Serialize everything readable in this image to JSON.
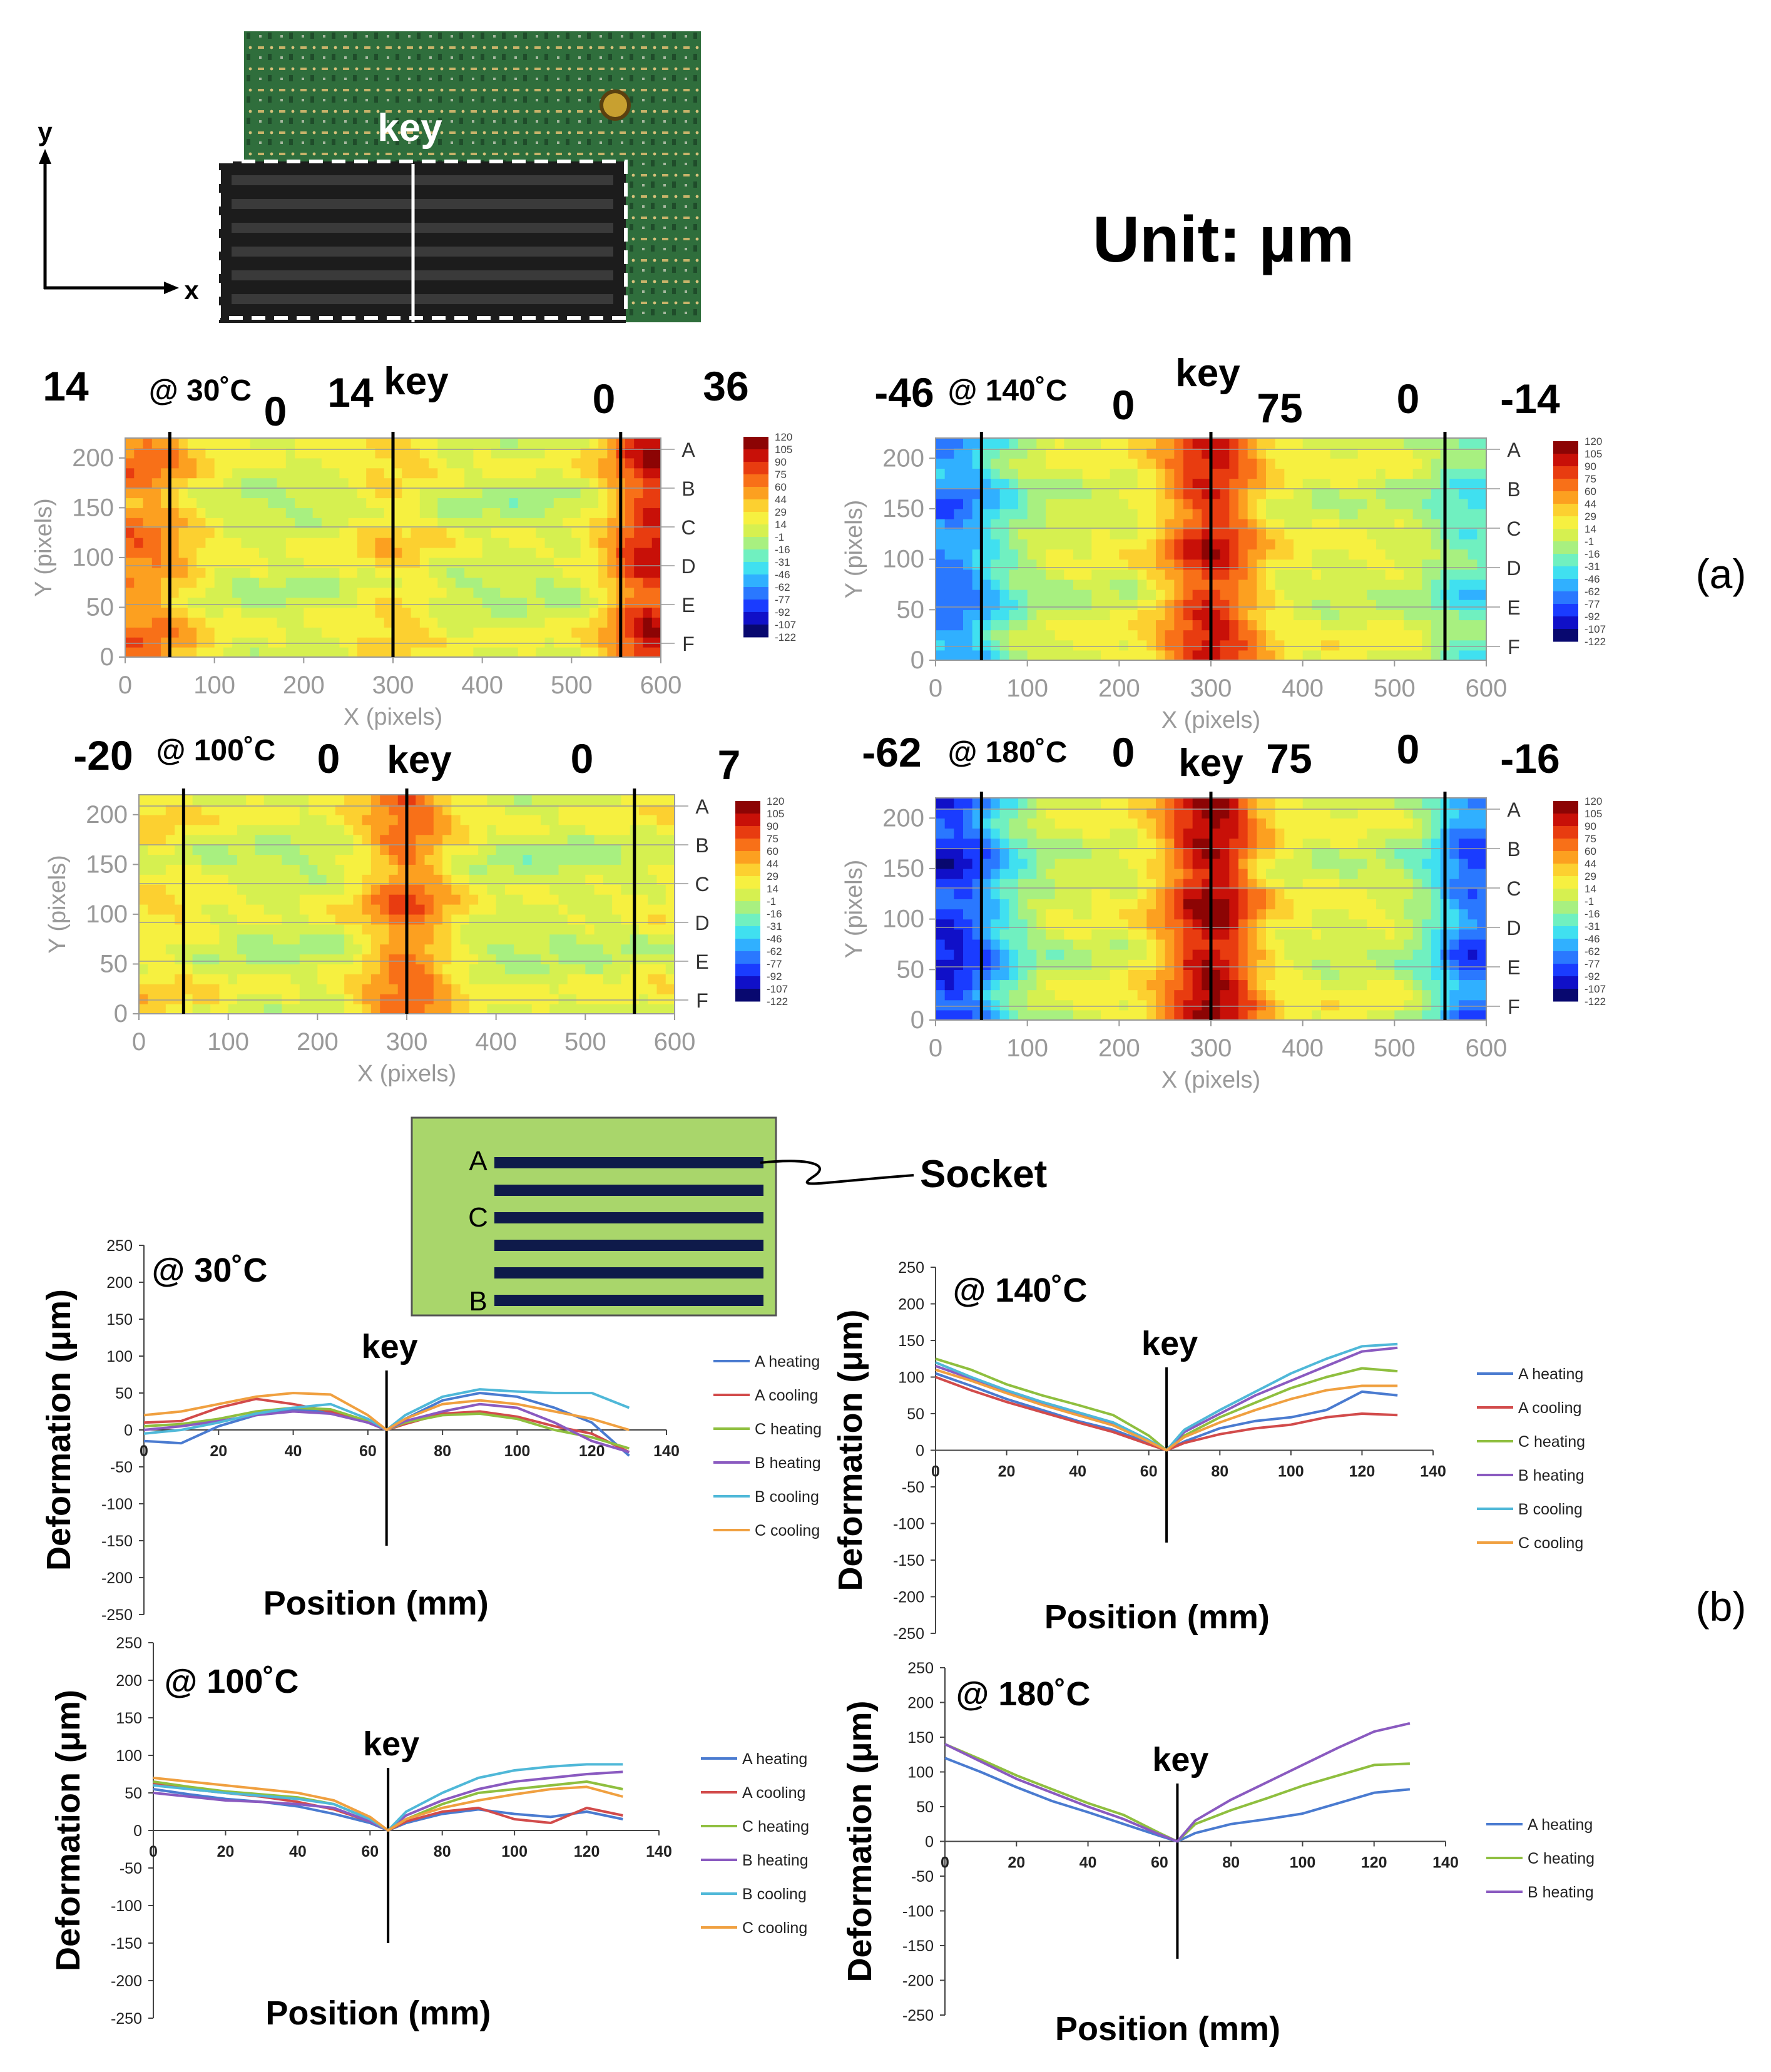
{
  "figure": {
    "unit_label": "Unit: µm",
    "panel_a_label": "(a)",
    "panel_b_label": "(b)",
    "photo": {
      "key_label": "key",
      "axis_x": "x",
      "axis_y": "y"
    },
    "socket_diagram": {
      "row_labels": [
        "A",
        "C",
        "B"
      ],
      "socket_label": "Socket",
      "board_color": "#a9d66b",
      "bar_color": "#0e1a4a"
    }
  },
  "chart_data": [
    {
      "type": "heatmap",
      "title": "@ 30˚C",
      "xlabel": "X (pixels)",
      "ylabel": "Y (pixels)",
      "xlim": [
        0,
        600
      ],
      "ylim": [
        0,
        220
      ],
      "xticks": [
        0,
        100,
        200,
        300,
        400,
        500,
        600
      ],
      "yticks": [
        0,
        50,
        100,
        150,
        200
      ],
      "row_labels": [
        "A",
        "B",
        "C",
        "D",
        "E",
        "F"
      ],
      "key_label": "key",
      "colorbar_ticks": [
        120,
        105,
        90,
        75,
        60,
        44,
        29,
        14,
        -1,
        -16,
        -31,
        -46,
        -62,
        -77,
        -92,
        -107,
        -122
      ],
      "annotations": [
        "14",
        "0",
        "14",
        "0",
        "36"
      ],
      "field": {
        "base": 5,
        "left": 55,
        "key": 25,
        "right": 85,
        "edge_noise": 12
      }
    },
    {
      "type": "heatmap",
      "title": "@ 140˚C",
      "xlabel": "X (pixels)",
      "ylabel": "Y (pixels)",
      "xlim": [
        0,
        600
      ],
      "ylim": [
        0,
        220
      ],
      "xticks": [
        0,
        100,
        200,
        300,
        400,
        500,
        600
      ],
      "yticks": [
        0,
        50,
        100,
        150,
        200
      ],
      "row_labels": [
        "A",
        "B",
        "C",
        "D",
        "E",
        "F"
      ],
      "key_label": "key",
      "colorbar_ticks": [
        120,
        105,
        90,
        75,
        60,
        44,
        29,
        14,
        -1,
        -16,
        -31,
        -46,
        -62,
        -77,
        -92,
        -107,
        -122
      ],
      "annotations": [
        "-46",
        "0",
        "75",
        "0",
        "-14"
      ],
      "field": {
        "base": 10,
        "left": -75,
        "key": 80,
        "right": -40,
        "edge_noise": 12
      }
    },
    {
      "type": "heatmap",
      "title": "@ 100˚C",
      "xlabel": "X (pixels)",
      "ylabel": "Y (pixels)",
      "xlim": [
        0,
        600
      ],
      "ylim": [
        0,
        220
      ],
      "xticks": [
        0,
        100,
        200,
        300,
        400,
        500,
        600
      ],
      "yticks": [
        0,
        50,
        100,
        150,
        200
      ],
      "row_labels": [
        "A",
        "B",
        "C",
        "D",
        "E",
        "F"
      ],
      "key_label": "key",
      "colorbar_ticks": [
        120,
        105,
        90,
        75,
        60,
        44,
        29,
        14,
        -1,
        -16,
        -31,
        -46,
        -62,
        -77,
        -92,
        -107,
        -122
      ],
      "annotations": [
        "-20",
        "0",
        "0",
        "7"
      ],
      "field": {
        "base": 5,
        "left": 20,
        "key": 60,
        "right": 10,
        "edge_noise": 12
      }
    },
    {
      "type": "heatmap",
      "title": "@ 180˚C",
      "xlabel": "X (pixels)",
      "ylabel": "Y (pixels)",
      "xlim": [
        0,
        600
      ],
      "ylim": [
        0,
        220
      ],
      "xticks": [
        0,
        100,
        200,
        300,
        400,
        500,
        600
      ],
      "yticks": [
        0,
        50,
        100,
        150,
        200
      ],
      "row_labels": [
        "A",
        "B",
        "C",
        "D",
        "E",
        "F"
      ],
      "key_label": "key",
      "colorbar_ticks": [
        120,
        105,
        90,
        75,
        60,
        44,
        29,
        14,
        -1,
        -16,
        -31,
        -46,
        -62,
        -77,
        -92,
        -107,
        -122
      ],
      "annotations": [
        "-62",
        "0",
        "75",
        "0",
        "-16"
      ],
      "field": {
        "base": 10,
        "left": -100,
        "key": 95,
        "right": -85,
        "edge_noise": 12
      }
    },
    {
      "type": "line",
      "title": "@ 30˚C",
      "xlabel": "Position (mm)",
      "ylabel": "Deformation (μm)",
      "xlim": [
        0,
        140
      ],
      "ylim": [
        -250,
        250
      ],
      "xticks": [
        0,
        20,
        40,
        60,
        80,
        100,
        120,
        140
      ],
      "yticks": [
        250,
        200,
        150,
        100,
        50,
        0,
        -50,
        -100,
        -150,
        -200,
        -250
      ],
      "key_label": "key",
      "key_x": 65,
      "x": [
        0,
        10,
        20,
        30,
        40,
        50,
        60,
        65,
        70,
        80,
        90,
        100,
        110,
        120,
        130
      ],
      "series": [
        {
          "name": "A heating",
          "color": "#4a7bd0",
          "values": [
            -15,
            -18,
            5,
            20,
            28,
            25,
            10,
            0,
            15,
            40,
            50,
            45,
            30,
            10,
            -35
          ]
        },
        {
          "name": "A cooling",
          "color": "#d24b4b",
          "values": [
            10,
            12,
            30,
            42,
            35,
            25,
            10,
            0,
            8,
            22,
            25,
            18,
            5,
            -5,
            -30
          ]
        },
        {
          "name": "C heating",
          "color": "#8fbf3f",
          "values": [
            5,
            8,
            15,
            25,
            30,
            28,
            12,
            0,
            10,
            20,
            22,
            15,
            0,
            -10,
            -25
          ]
        },
        {
          "name": "B heating",
          "color": "#8a5ac0",
          "values": [
            0,
            5,
            12,
            20,
            25,
            22,
            10,
            0,
            12,
            25,
            35,
            30,
            10,
            -15,
            -30
          ]
        },
        {
          "name": "B cooling",
          "color": "#4fb8d8",
          "values": [
            -5,
            0,
            10,
            22,
            30,
            35,
            15,
            0,
            20,
            45,
            55,
            52,
            50,
            50,
            30
          ]
        },
        {
          "name": "C cooling",
          "color": "#f0a040",
          "values": [
            20,
            25,
            35,
            45,
            50,
            48,
            20,
            0,
            15,
            35,
            40,
            35,
            25,
            15,
            0
          ]
        }
      ]
    },
    {
      "type": "line",
      "title": "@ 140˚C",
      "xlabel": "Position (mm)",
      "ylabel": "Deformation (μm)",
      "xlim": [
        0,
        140
      ],
      "ylim": [
        -250,
        250
      ],
      "xticks": [
        0,
        20,
        40,
        60,
        80,
        100,
        120,
        140
      ],
      "yticks": [
        250,
        200,
        150,
        100,
        50,
        0,
        -50,
        -100,
        -150,
        -200,
        -250
      ],
      "key_label": "key",
      "key_x": 65,
      "x": [
        0,
        10,
        20,
        30,
        40,
        50,
        60,
        65,
        70,
        80,
        90,
        100,
        110,
        120,
        130
      ],
      "series": [
        {
          "name": "A heating",
          "color": "#4a7bd0",
          "values": [
            105,
            88,
            70,
            55,
            40,
            28,
            10,
            0,
            12,
            30,
            40,
            45,
            55,
            80,
            75
          ]
        },
        {
          "name": "A cooling",
          "color": "#d24b4b",
          "values": [
            100,
            82,
            66,
            52,
            38,
            25,
            8,
            0,
            10,
            22,
            30,
            35,
            45,
            50,
            48
          ]
        },
        {
          "name": "C heating",
          "color": "#8fbf3f",
          "values": [
            125,
            110,
            90,
            75,
            62,
            48,
            20,
            0,
            20,
            45,
            65,
            85,
            100,
            112,
            108
          ]
        },
        {
          "name": "B heating",
          "color": "#8a5ac0",
          "values": [
            115,
            98,
            80,
            65,
            50,
            35,
            12,
            0,
            25,
            50,
            75,
            95,
            115,
            135,
            140
          ]
        },
        {
          "name": "B cooling",
          "color": "#4fb8d8",
          "values": [
            120,
            100,
            82,
            66,
            52,
            38,
            14,
            0,
            28,
            55,
            80,
            105,
            125,
            142,
            145
          ]
        },
        {
          "name": "C cooling",
          "color": "#f0a040",
          "values": [
            110,
            95,
            78,
            62,
            48,
            34,
            12,
            0,
            18,
            38,
            55,
            70,
            82,
            88,
            88
          ]
        }
      ]
    },
    {
      "type": "line",
      "title": "@ 100˚C",
      "xlabel": "Position (mm)",
      "ylabel": "Deformation (μm)",
      "xlim": [
        0,
        140
      ],
      "ylim": [
        -250,
        250
      ],
      "xticks": [
        0,
        20,
        40,
        60,
        80,
        100,
        120,
        140
      ],
      "yticks": [
        250,
        200,
        150,
        100,
        50,
        0,
        -50,
        -100,
        -150,
        -200,
        -250
      ],
      "key_label": "key",
      "key_x": 65,
      "x": [
        0,
        10,
        20,
        30,
        40,
        50,
        60,
        65,
        70,
        80,
        90,
        100,
        110,
        120,
        130
      ],
      "series": [
        {
          "name": "A heating",
          "color": "#4a7bd0",
          "values": [
            55,
            48,
            42,
            38,
            32,
            22,
            10,
            0,
            10,
            22,
            28,
            22,
            18,
            25,
            15
          ]
        },
        {
          "name": "A cooling",
          "color": "#d24b4b",
          "values": [
            62,
            55,
            50,
            45,
            38,
            28,
            12,
            0,
            12,
            25,
            30,
            15,
            10,
            30,
            20
          ]
        },
        {
          "name": "C heating",
          "color": "#8fbf3f",
          "values": [
            65,
            58,
            52,
            48,
            44,
            35,
            15,
            0,
            15,
            35,
            50,
            55,
            60,
            65,
            55
          ]
        },
        {
          "name": "B heating",
          "color": "#8a5ac0",
          "values": [
            50,
            45,
            40,
            38,
            35,
            30,
            12,
            0,
            20,
            40,
            55,
            65,
            70,
            75,
            78
          ]
        },
        {
          "name": "B cooling",
          "color": "#4fb8d8",
          "values": [
            60,
            55,
            50,
            46,
            42,
            35,
            15,
            0,
            25,
            50,
            70,
            80,
            85,
            88,
            88
          ]
        },
        {
          "name": "C cooling",
          "color": "#f0a040",
          "values": [
            70,
            65,
            60,
            55,
            50,
            40,
            18,
            0,
            15,
            30,
            40,
            48,
            55,
            58,
            45
          ]
        }
      ]
    },
    {
      "type": "line",
      "title": "@ 180˚C",
      "xlabel": "Position (mm)",
      "ylabel": "Deformation (μm)",
      "xlim": [
        0,
        140
      ],
      "ylim": [
        -250,
        250
      ],
      "xticks": [
        0,
        20,
        40,
        60,
        80,
        100,
        120,
        140
      ],
      "yticks": [
        250,
        200,
        150,
        100,
        50,
        0,
        -50,
        -100,
        -150,
        -200,
        -250
      ],
      "key_label": "key",
      "key_x": 65,
      "x": [
        0,
        10,
        20,
        30,
        40,
        50,
        60,
        65,
        70,
        80,
        90,
        100,
        110,
        120,
        130
      ],
      "series": [
        {
          "name": "A heating",
          "color": "#4a7bd0",
          "values": [
            120,
            100,
            78,
            58,
            42,
            25,
            8,
            0,
            12,
            25,
            32,
            40,
            55,
            70,
            75
          ]
        },
        {
          "name": "C heating",
          "color": "#8fbf3f",
          "values": [
            140,
            118,
            95,
            75,
            55,
            38,
            12,
            0,
            25,
            45,
            62,
            80,
            95,
            110,
            112
          ]
        },
        {
          "name": "B heating",
          "color": "#8a5ac0",
          "values": [
            140,
            115,
            90,
            70,
            50,
            32,
            10,
            0,
            30,
            60,
            85,
            110,
            135,
            158,
            170
          ]
        }
      ]
    }
  ]
}
